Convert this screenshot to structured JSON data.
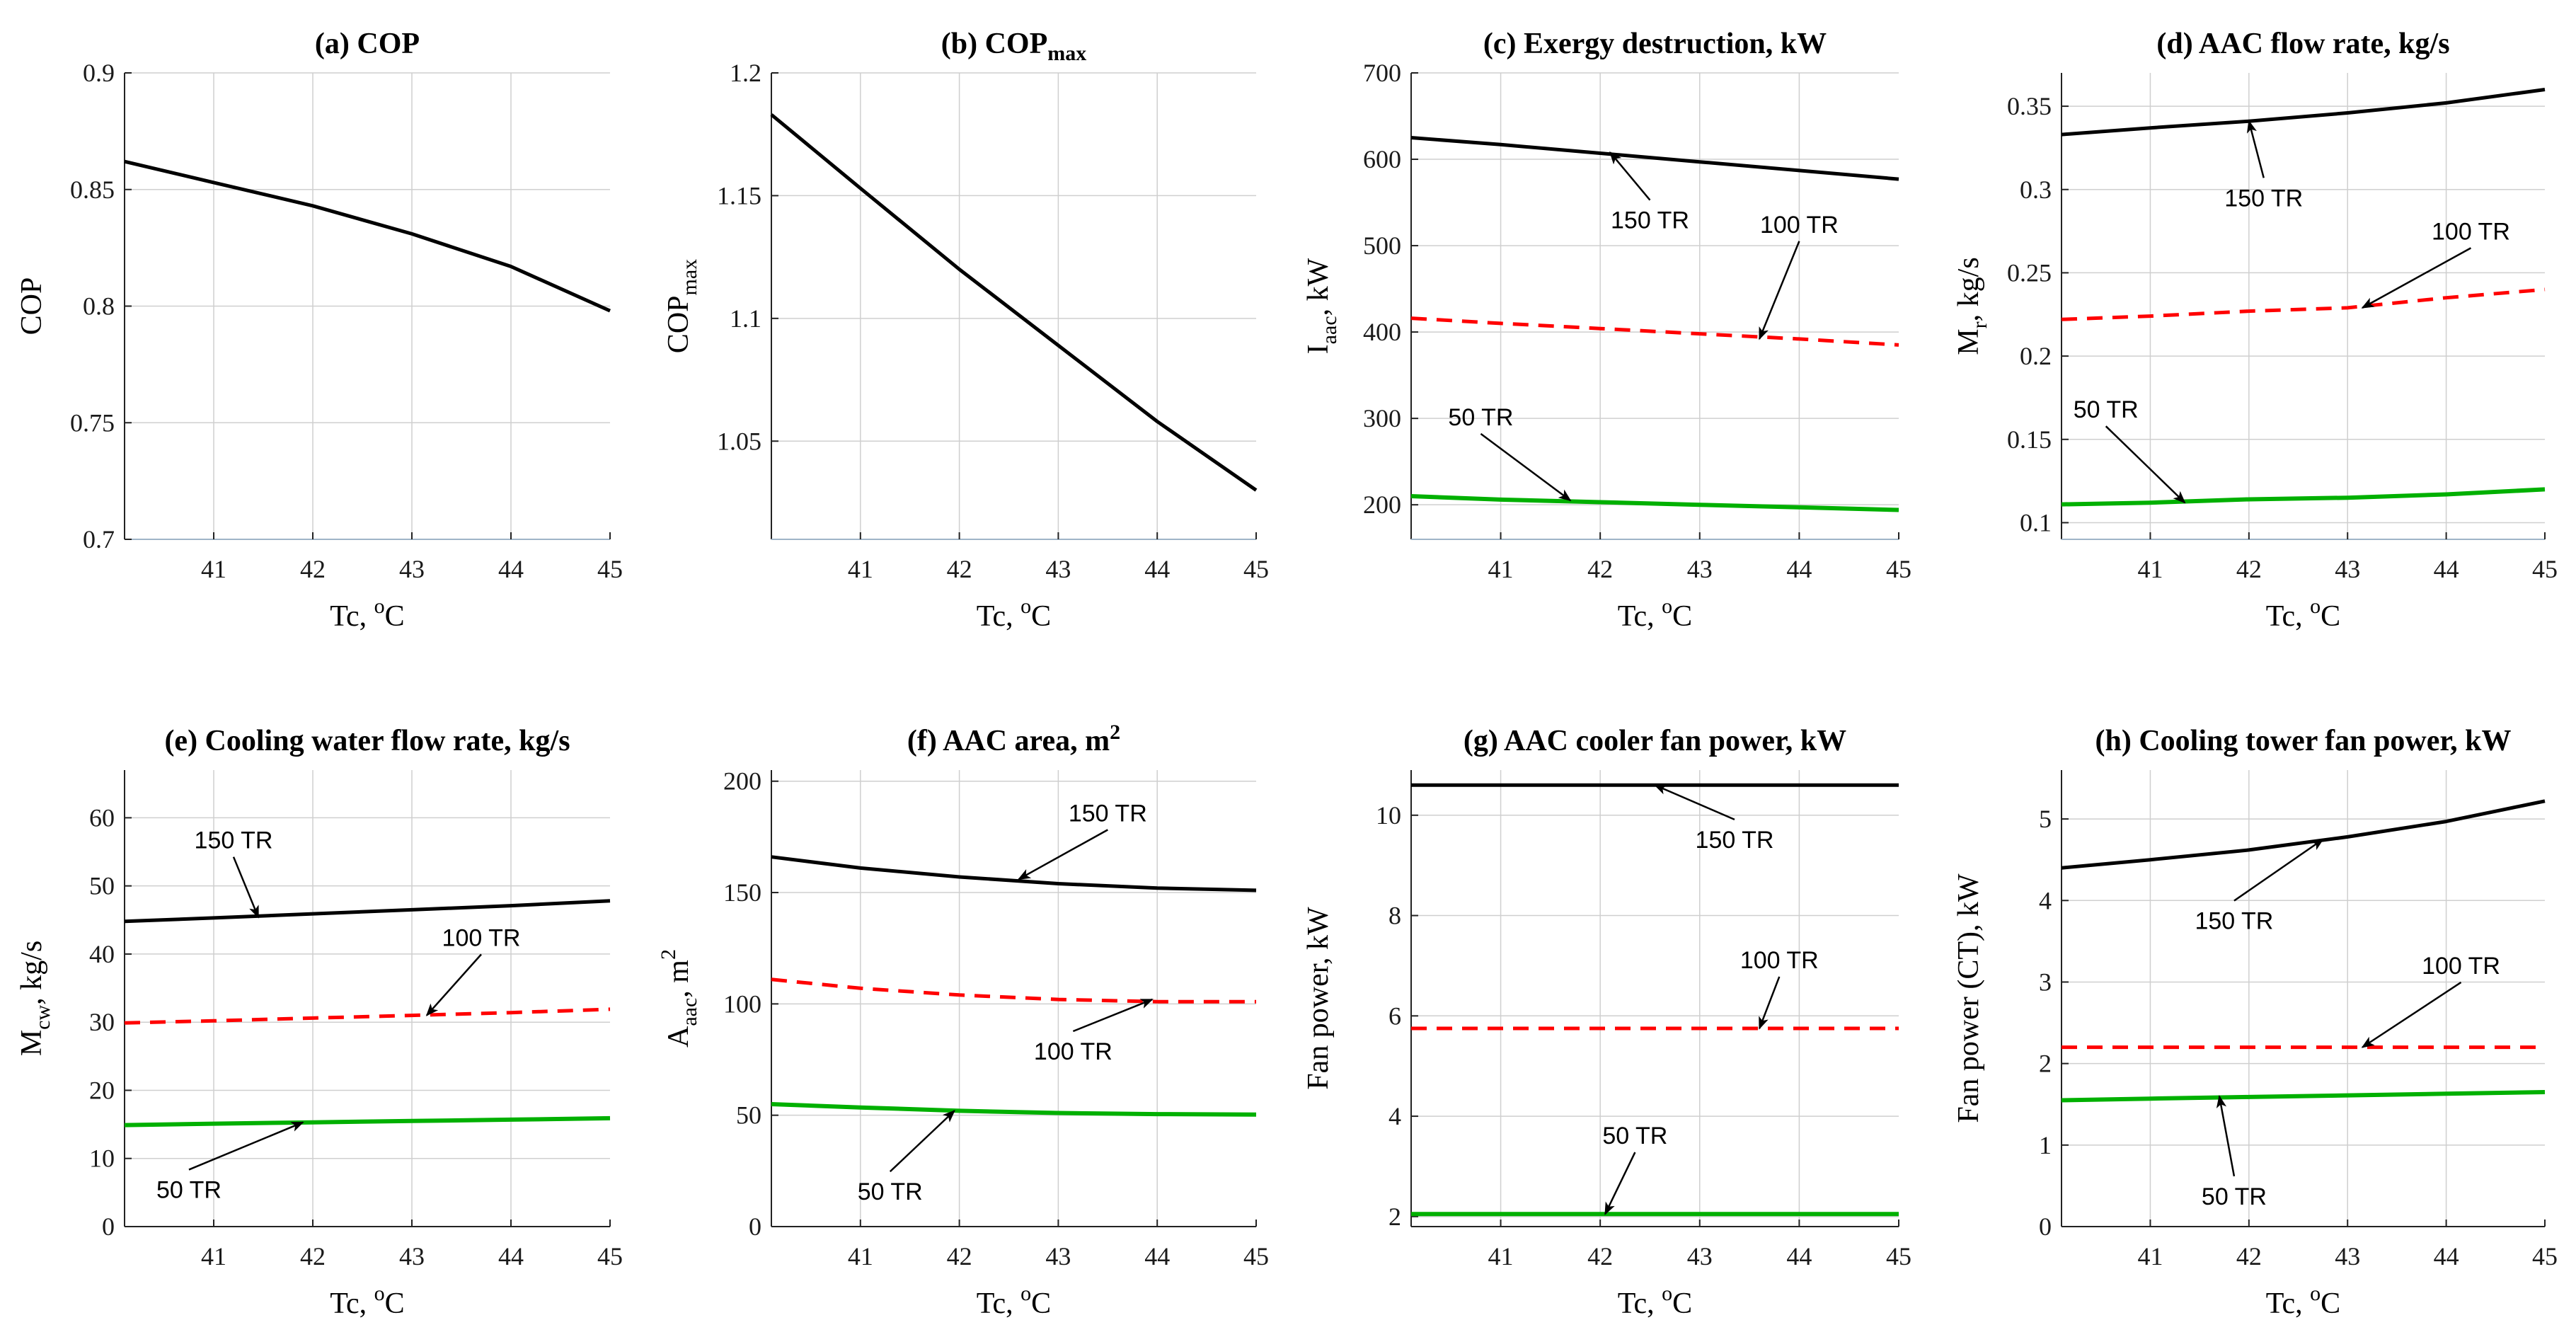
{
  "series_styles": {
    "150 TR": {
      "color": "#000000",
      "dash": "",
      "width": 5
    },
    "100 TR": {
      "color": "#ff0000",
      "dash": "22 14",
      "width": 5
    },
    "50 TR": {
      "color": "#00b000",
      "dash": "",
      "width": 6
    }
  },
  "chart_data": [
    {
      "id": "a",
      "type": "line",
      "title": "(a) COP",
      "title_sub": "",
      "xlabel": "Tc, ",
      "xlabel_sup": "o",
      "xlabel_after": "C",
      "ylabel": "COP",
      "ylabel_sub": "",
      "ylabel_after": "",
      "xlim": [
        40.1,
        45
      ],
      "xticks": [
        41,
        42,
        43,
        44,
        45
      ],
      "ylim": [
        0.7,
        0.9
      ],
      "yticks": [
        0.7,
        0.75,
        0.8,
        0.85,
        0.9
      ],
      "ytick_labels": [
        "0.7",
        "0.75",
        "0.8",
        "0.85",
        "0.9"
      ],
      "baseline": true,
      "series": [
        {
          "name": "COP",
          "color": "#000000",
          "dash": "",
          "width": 5,
          "x": [
            40.1,
            41,
            42,
            43,
            44,
            45
          ],
          "y": [
            0.862,
            0.853,
            0.843,
            0.831,
            0.817,
            0.798
          ]
        }
      ],
      "annotations": []
    },
    {
      "id": "b",
      "type": "line",
      "title": "(b) COP",
      "title_sub": "max",
      "xlabel": "Tc, ",
      "xlabel_sup": "o",
      "xlabel_after": "C",
      "ylabel": "COP",
      "ylabel_sub": "max",
      "ylabel_after": "",
      "xlim": [
        40.1,
        45
      ],
      "xticks": [
        41,
        42,
        43,
        44,
        45
      ],
      "ylim": [
        1.01,
        1.2
      ],
      "yticks": [
        1.05,
        1.1,
        1.15,
        1.2
      ],
      "ytick_labels": [
        "1.05",
        "1.1",
        "1.15",
        "1.2"
      ],
      "baseline": true,
      "series": [
        {
          "name": "COPmax",
          "color": "#000000",
          "dash": "",
          "width": 5,
          "x": [
            40.1,
            41,
            42,
            43,
            44,
            45
          ],
          "y": [
            1.183,
            1.153,
            1.12,
            1.089,
            1.058,
            1.03
          ]
        }
      ],
      "annotations": []
    },
    {
      "id": "c",
      "type": "line",
      "title": "(c) Exergy destruction, kW",
      "title_sub": "",
      "xlabel": "Tc, ",
      "xlabel_sup": "o",
      "xlabel_after": "C",
      "ylabel": "I",
      "ylabel_sub": "aac",
      "ylabel_after": ", kW",
      "xlim": [
        40.1,
        45
      ],
      "xticks": [
        41,
        42,
        43,
        44,
        45
      ],
      "ylim": [
        160,
        700
      ],
      "yticks": [
        200,
        300,
        400,
        500,
        600,
        700
      ],
      "ytick_labels": [
        "200",
        "300",
        "400",
        "500",
        "600",
        "700"
      ],
      "baseline": true,
      "series": [
        {
          "name": "150 TR",
          "x": [
            40.1,
            41,
            42,
            43,
            44,
            45
          ],
          "y": [
            625,
            617,
            607,
            597,
            587,
            577
          ]
        },
        {
          "name": "100 TR",
          "x": [
            40.1,
            41,
            42,
            43,
            44,
            45
          ],
          "y": [
            416,
            410,
            404,
            398,
            392,
            385
          ]
        },
        {
          "name": "50 TR",
          "x": [
            40.1,
            41,
            42,
            43,
            44,
            45
          ],
          "y": [
            210,
            206,
            203,
            200,
            197,
            194
          ]
        }
      ],
      "annotations": [
        {
          "text": "150 TR",
          "tx": 42.5,
          "ty": 520,
          "ax": 42.1,
          "ay": 608
        },
        {
          "text": "100 TR",
          "tx": 44.0,
          "ty": 515,
          "ax": 43.6,
          "ay": 392
        },
        {
          "text": "50 TR",
          "tx": 40.8,
          "ty": 292,
          "ax": 41.7,
          "ay": 205
        }
      ]
    },
    {
      "id": "d",
      "type": "line",
      "title": "(d) AAC flow rate, kg/s",
      "title_sub": "",
      "xlabel": "Tc, ",
      "xlabel_sup": "o",
      "xlabel_after": "C",
      "ylabel": "M",
      "ylabel_sub": "r",
      "ylabel_after": ", kg/s",
      "xlim": [
        40.1,
        45
      ],
      "xticks": [
        41,
        42,
        43,
        44,
        45
      ],
      "ylim": [
        0.09,
        0.37
      ],
      "yticks": [
        0.1,
        0.15,
        0.2,
        0.25,
        0.3,
        0.35
      ],
      "ytick_labels": [
        "0.1",
        "0.15",
        "0.2",
        "0.25",
        "0.3",
        "0.35"
      ],
      "baseline": true,
      "series": [
        {
          "name": "150 TR",
          "x": [
            40.1,
            41,
            42,
            43,
            44,
            45
          ],
          "y": [
            0.333,
            0.337,
            0.341,
            0.346,
            0.352,
            0.36
          ]
        },
        {
          "name": "100 TR",
          "x": [
            40.1,
            41,
            42,
            43,
            44,
            45
          ],
          "y": [
            0.222,
            0.224,
            0.227,
            0.229,
            0.235,
            0.24
          ]
        },
        {
          "name": "50 TR",
          "x": [
            40.1,
            41,
            42,
            43,
            44,
            45
          ],
          "y": [
            0.111,
            0.112,
            0.114,
            0.115,
            0.117,
            0.12
          ]
        }
      ],
      "annotations": [
        {
          "text": "150 TR",
          "tx": 42.15,
          "ty": 0.29,
          "ax": 42.0,
          "ay": 0.341
        },
        {
          "text": "100 TR",
          "tx": 44.25,
          "ty": 0.27,
          "ax": 43.15,
          "ay": 0.229
        },
        {
          "text": "50 TR",
          "tx": 40.55,
          "ty": 0.163,
          "ax": 41.35,
          "ay": 0.112
        }
      ]
    },
    {
      "id": "e",
      "type": "line",
      "title": "(e) Cooling water flow rate, kg/s",
      "title_sub": "",
      "xlabel": "Tc, ",
      "xlabel_sup": "o",
      "xlabel_after": "C",
      "ylabel": "M",
      "ylabel_sub": "cw",
      "ylabel_after": ", kg/s",
      "xlim": [
        40.1,
        45
      ],
      "xticks": [
        41,
        42,
        43,
        44,
        45
      ],
      "ylim": [
        0,
        67
      ],
      "yticks": [
        0,
        10,
        20,
        30,
        40,
        50,
        60
      ],
      "ytick_labels": [
        "0",
        "10",
        "20",
        "30",
        "40",
        "50",
        "60"
      ],
      "baseline": false,
      "series": [
        {
          "name": "150 TR",
          "x": [
            40.1,
            41,
            42,
            43,
            44,
            45
          ],
          "y": [
            44.8,
            45.3,
            45.9,
            46.5,
            47.1,
            47.8
          ]
        },
        {
          "name": "100 TR",
          "x": [
            40.1,
            41,
            42,
            43,
            44,
            45
          ],
          "y": [
            29.9,
            30.2,
            30.6,
            31.0,
            31.4,
            31.9
          ]
        },
        {
          "name": "50 TR",
          "x": [
            40.1,
            41,
            42,
            43,
            44,
            45
          ],
          "y": [
            14.9,
            15.1,
            15.3,
            15.5,
            15.7,
            15.9
          ]
        }
      ],
      "annotations": [
        {
          "text": "150 TR",
          "tx": 41.2,
          "ty": 55.5,
          "ax": 41.45,
          "ay": 45.4
        },
        {
          "text": "100 TR",
          "tx": 43.7,
          "ty": 41.2,
          "ax": 43.15,
          "ay": 31.0
        },
        {
          "text": "50 TR",
          "tx": 40.75,
          "ty": 4.2,
          "ax": 41.9,
          "ay": 15.3
        }
      ]
    },
    {
      "id": "f",
      "type": "line",
      "title": "(f) AAC area, m",
      "title_sup": "2",
      "xlabel": "Tc, ",
      "xlabel_sup": "o",
      "xlabel_after": "C",
      "ylabel": "A",
      "ylabel_sub": "aac",
      "ylabel_after": ", m",
      "ylabel_sup": "2",
      "xlim": [
        40.1,
        45
      ],
      "xticks": [
        41,
        42,
        43,
        44,
        45
      ],
      "ylim": [
        0,
        205
      ],
      "yticks": [
        0,
        50,
        100,
        150,
        200
      ],
      "ytick_labels": [
        "0",
        "50",
        "100",
        "150",
        "200"
      ],
      "baseline": false,
      "series": [
        {
          "name": "150 TR",
          "x": [
            40.1,
            41,
            42,
            43,
            44,
            45
          ],
          "y": [
            166,
            161,
            157,
            154,
            152,
            151
          ]
        },
        {
          "name": "100 TR",
          "x": [
            40.1,
            41,
            42,
            43,
            44,
            45
          ],
          "y": [
            111,
            107,
            104,
            102,
            101,
            101
          ]
        },
        {
          "name": "50 TR",
          "x": [
            40.1,
            41,
            42,
            43,
            44,
            45
          ],
          "y": [
            55,
            53.5,
            52,
            51,
            50.5,
            50.3
          ]
        }
      ],
      "annotations": [
        {
          "text": "150 TR",
          "tx": 43.5,
          "ty": 182,
          "ax": 42.6,
          "ay": 156
        },
        {
          "text": "100 TR",
          "tx": 43.15,
          "ty": 75,
          "ax": 43.95,
          "ay": 102
        },
        {
          "text": "50 TR",
          "tx": 41.3,
          "ty": 12,
          "ax": 41.95,
          "ay": 52
        }
      ]
    },
    {
      "id": "g",
      "type": "line",
      "title": "(g) AAC cooler fan power, kW",
      "title_sub": "",
      "xlabel": "Tc, ",
      "xlabel_sup": "o",
      "xlabel_after": "C",
      "ylabel": "Fan power, kW",
      "ylabel_sub": "",
      "ylabel_after": "",
      "xlim": [
        40.1,
        45
      ],
      "xticks": [
        41,
        42,
        43,
        44,
        45
      ],
      "ylim": [
        1.8,
        10.9
      ],
      "yticks": [
        2,
        4,
        6,
        8,
        10
      ],
      "ytick_labels": [
        "2",
        "4",
        "6",
        "8",
        "10"
      ],
      "baseline": false,
      "series": [
        {
          "name": "150 TR",
          "x": [
            40.1,
            41,
            42,
            43,
            44,
            45
          ],
          "y": [
            10.6,
            10.6,
            10.6,
            10.6,
            10.6,
            10.6
          ]
        },
        {
          "name": "100 TR",
          "x": [
            40.1,
            41,
            42,
            43,
            44,
            45
          ],
          "y": [
            5.75,
            5.75,
            5.75,
            5.75,
            5.75,
            5.75
          ]
        },
        {
          "name": "50 TR",
          "x": [
            40.1,
            41,
            42,
            43,
            44,
            45
          ],
          "y": [
            2.05,
            2.05,
            2.05,
            2.05,
            2.05,
            2.05
          ]
        }
      ],
      "annotations": [
        {
          "text": "150 TR",
          "tx": 43.35,
          "ty": 9.35,
          "ax": 42.55,
          "ay": 10.6
        },
        {
          "text": "100 TR",
          "tx": 43.8,
          "ty": 6.95,
          "ax": 43.6,
          "ay": 5.75
        },
        {
          "text": "50 TR",
          "tx": 42.35,
          "ty": 3.45,
          "ax": 42.05,
          "ay": 2.05
        }
      ]
    },
    {
      "id": "h",
      "type": "line",
      "title": "(h) Cooling tower fan power, kW",
      "title_sub": "",
      "xlabel": "Tc, ",
      "xlabel_sup": "o",
      "xlabel_after": "C",
      "ylabel": "Fan power (CT), kW",
      "ylabel_sub": "",
      "ylabel_after": "",
      "xlim": [
        40.1,
        45
      ],
      "xticks": [
        41,
        42,
        43,
        44,
        45
      ],
      "ylim": [
        0,
        5.6
      ],
      "yticks": [
        0,
        1,
        2,
        3,
        4,
        5
      ],
      "ytick_labels": [
        "0",
        "1",
        "2",
        "3",
        "4",
        "5"
      ],
      "baseline": false,
      "series": [
        {
          "name": "150 TR",
          "x": [
            40.1,
            41,
            42,
            43,
            44,
            45
          ],
          "y": [
            4.4,
            4.5,
            4.62,
            4.78,
            4.97,
            5.22
          ]
        },
        {
          "name": "100 TR",
          "x": [
            40.1,
            41,
            42,
            43,
            44,
            45
          ],
          "y": [
            2.2,
            2.2,
            2.2,
            2.2,
            2.2,
            2.2
          ]
        },
        {
          "name": "50 TR",
          "x": [
            40.1,
            41,
            42,
            43,
            44,
            45
          ],
          "y": [
            1.55,
            1.57,
            1.59,
            1.61,
            1.63,
            1.65
          ]
        }
      ],
      "annotations": [
        {
          "text": "150 TR",
          "tx": 41.85,
          "ty": 3.65,
          "ax": 42.75,
          "ay": 4.75
        },
        {
          "text": "100 TR",
          "tx": 44.15,
          "ty": 3.1,
          "ax": 43.15,
          "ay": 2.2
        },
        {
          "text": "50 TR",
          "tx": 41.85,
          "ty": 0.27,
          "ax": 41.7,
          "ay": 1.6
        }
      ]
    }
  ]
}
